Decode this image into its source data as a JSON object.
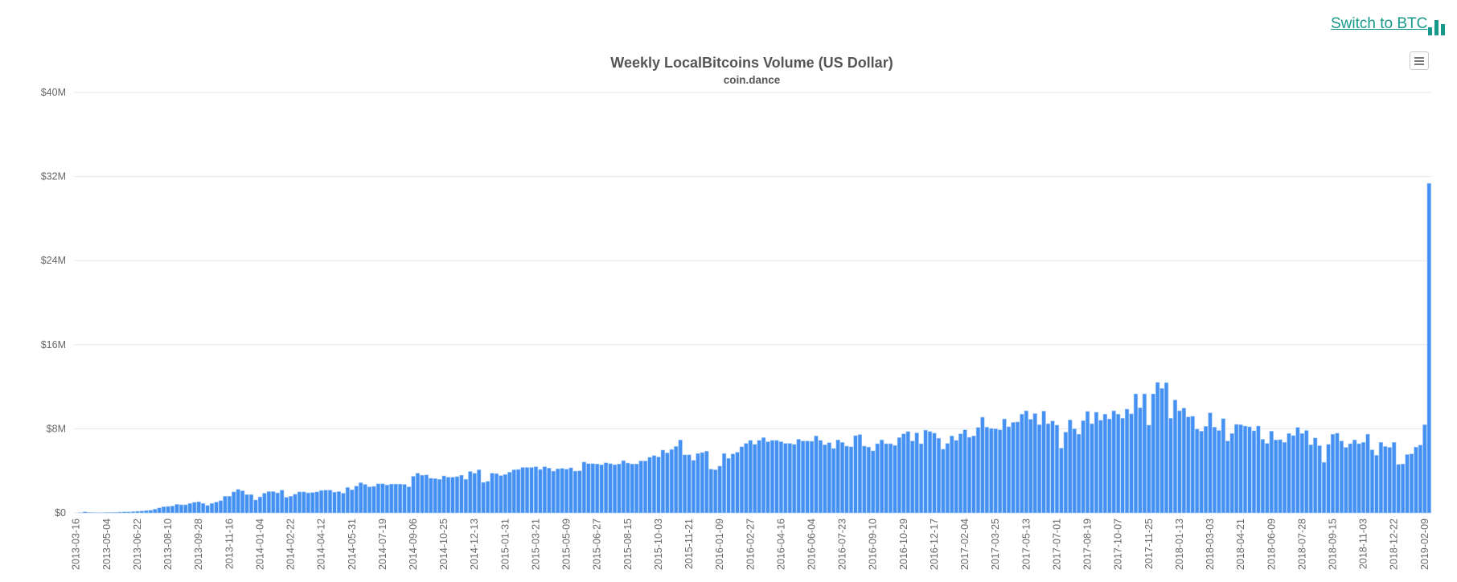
{
  "header": {
    "switch_label": "Switch to BTC",
    "switch_icon": "bar-chart-icon",
    "menu_icon": "hamburger-menu-icon"
  },
  "colors": {
    "bar": "#4591f3",
    "bar_border": "#a9cdf8",
    "link": "#16998a",
    "grid": "#e6e6e6"
  },
  "chart_data": {
    "type": "bar",
    "title": "Weekly LocalBitcoins Volume (US Dollar)",
    "subtitle": "coin.dance",
    "xlabel": "",
    "ylabel": "",
    "value_unit": "USD millions",
    "ylim": [
      0,
      40
    ],
    "y_ticks": [
      0,
      8,
      16,
      24,
      32,
      40
    ],
    "y_tick_labels": [
      "$0",
      "$8M",
      "$16M",
      "$24M",
      "$32M",
      "$40M"
    ],
    "grid": true,
    "legend": "none",
    "x_tick_labels": [
      "2013-03-16",
      "2013-05-04",
      "2013-06-22",
      "2013-08-10",
      "2013-09-28",
      "2013-11-16",
      "2014-01-04",
      "2014-02-22",
      "2014-04-12",
      "2014-05-31",
      "2014-07-19",
      "2014-09-06",
      "2014-10-25",
      "2014-12-13",
      "2015-01-31",
      "2015-03-21",
      "2015-05-09",
      "2015-06-27",
      "2015-08-15",
      "2015-10-03",
      "2015-11-21",
      "2016-01-09",
      "2016-02-27",
      "2016-04-16",
      "2016-06-04",
      "2016-07-23",
      "2016-09-10",
      "2016-10-29",
      "2016-12-17",
      "2017-02-04",
      "2017-03-25",
      "2017-05-13",
      "2017-07-01",
      "2017-08-19",
      "2017-10-07",
      "2017-11-25",
      "2018-01-13",
      "2018-03-03",
      "2018-04-21",
      "2018-06-09",
      "2018-07-28",
      "2018-09-15",
      "2018-11-03",
      "2018-12-22",
      "2019-02-09"
    ],
    "x_tick_every": 7,
    "values": [
      0,
      0.03,
      0.1,
      0.05,
      0.03,
      0.03,
      0.03,
      0.05,
      0.05,
      0.06,
      0.08,
      0.1,
      0.1,
      0.12,
      0.15,
      0.18,
      0.22,
      0.25,
      0.35,
      0.48,
      0.58,
      0.61,
      0.65,
      0.81,
      0.77,
      0.77,
      0.9,
      1.0,
      1.06,
      0.9,
      0.71,
      0.9,
      1.03,
      1.16,
      1.58,
      1.58,
      2.0,
      2.23,
      2.1,
      1.74,
      1.74,
      1.23,
      1.52,
      1.87,
      2.03,
      2.03,
      1.9,
      2.16,
      1.48,
      1.58,
      1.77,
      2.0,
      2.0,
      1.9,
      1.94,
      2.0,
      2.13,
      2.16,
      2.16,
      1.97,
      2.03,
      1.87,
      2.42,
      2.19,
      2.55,
      2.87,
      2.71,
      2.48,
      2.52,
      2.77,
      2.77,
      2.65,
      2.74,
      2.74,
      2.74,
      2.71,
      2.48,
      3.48,
      3.77,
      3.58,
      3.61,
      3.29,
      3.26,
      3.19,
      3.52,
      3.39,
      3.39,
      3.45,
      3.58,
      3.19,
      3.94,
      3.77,
      4.1,
      2.9,
      3.0,
      3.77,
      3.74,
      3.55,
      3.65,
      3.87,
      4.1,
      4.13,
      4.32,
      4.32,
      4.32,
      4.39,
      4.13,
      4.39,
      4.26,
      3.97,
      4.19,
      4.23,
      4.16,
      4.29,
      3.97,
      4.0,
      4.84,
      4.68,
      4.68,
      4.65,
      4.58,
      4.77,
      4.68,
      4.58,
      4.65,
      4.97,
      4.74,
      4.65,
      4.65,
      4.94,
      4.94,
      5.29,
      5.45,
      5.32,
      5.97,
      5.71,
      6.03,
      6.32,
      6.94,
      5.52,
      5.52,
      5.0,
      5.65,
      5.74,
      5.87,
      4.16,
      4.1,
      4.45,
      5.65,
      5.19,
      5.61,
      5.77,
      6.29,
      6.61,
      6.9,
      6.52,
      6.9,
      7.16,
      6.77,
      6.9,
      6.9,
      6.77,
      6.61,
      6.61,
      6.52,
      7.0,
      6.84,
      6.84,
      6.81,
      7.32,
      6.9,
      6.48,
      6.68,
      6.13,
      6.94,
      6.71,
      6.35,
      6.29,
      7.35,
      7.45,
      6.35,
      6.26,
      5.9,
      6.58,
      6.94,
      6.58,
      6.58,
      6.42,
      7.16,
      7.52,
      7.74,
      6.84,
      7.61,
      6.58,
      7.87,
      7.74,
      7.58,
      7.1,
      6.06,
      6.61,
      7.32,
      6.9,
      7.52,
      7.9,
      7.19,
      7.32,
      8.13,
      9.1,
      8.16,
      8.03,
      8.0,
      7.9,
      8.94,
      8.19,
      8.61,
      8.65,
      9.39,
      9.71,
      8.9,
      9.45,
      8.39,
      9.68,
      8.48,
      8.74,
      8.35,
      6.16,
      7.68,
      8.84,
      8.0,
      7.48,
      8.77,
      9.65,
      8.48,
      9.58,
      8.81,
      9.39,
      8.94,
      9.71,
      9.39,
      9.0,
      9.87,
      9.42,
      11.32,
      10.0,
      11.32,
      8.35,
      11.32,
      12.42,
      11.84,
      12.39,
      9.0,
      10.74,
      9.71,
      9.97,
      9.13,
      9.19,
      7.97,
      7.77,
      8.23,
      9.52,
      8.16,
      7.84,
      8.97,
      6.84,
      7.55,
      8.42,
      8.39,
      8.26,
      8.19,
      7.81,
      8.26,
      7.0,
      6.61,
      7.77,
      6.94,
      6.97,
      6.71,
      7.55,
      7.35,
      8.13,
      7.55,
      7.84,
      6.48,
      7.13,
      6.39,
      4.81,
      6.52,
      7.48,
      7.58,
      6.84,
      6.23,
      6.58,
      6.94,
      6.58,
      6.71,
      7.48,
      6.0,
      5.48,
      6.71,
      6.32,
      6.23,
      6.71,
      4.61,
      4.65,
      5.55,
      5.61,
      6.26,
      6.45,
      8.39,
      31.35
    ]
  }
}
